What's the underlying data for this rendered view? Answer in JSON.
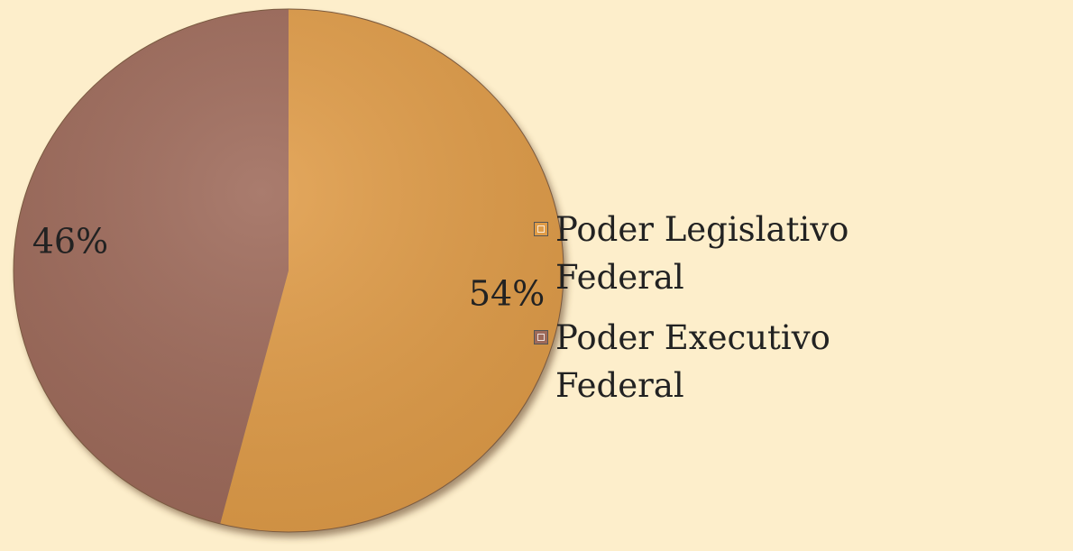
{
  "chart_data": {
    "type": "pie",
    "categories": [
      "Poder Legislativo Federal",
      "Poder Executivo Federal"
    ],
    "values": [
      54,
      46
    ],
    "value_labels": [
      "54%",
      "46%"
    ],
    "colors": [
      "#e09c48",
      "#9e6a5a"
    ],
    "legend": "right"
  }
}
